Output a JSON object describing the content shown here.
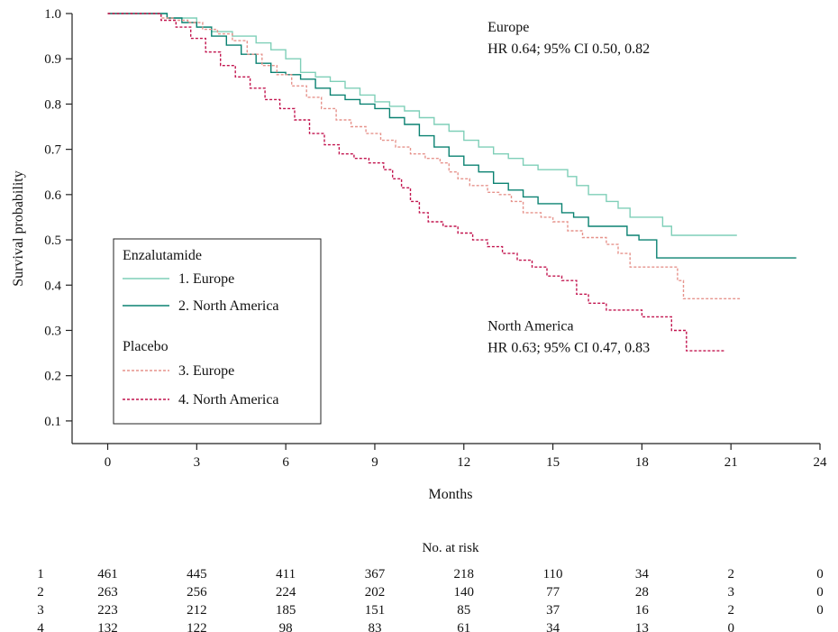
{
  "chart_data": {
    "type": "line",
    "style": "kaplan-meier-step",
    "xlabel": "Months",
    "ylabel": "Survival probability",
    "xlim": [
      -1.2,
      24
    ],
    "ylim": [
      0.05,
      1.0
    ],
    "x_ticks": [
      0,
      3,
      6,
      9,
      12,
      15,
      18,
      21,
      24
    ],
    "y_ticks": [
      0.1,
      0.2,
      0.3,
      0.4,
      0.5,
      0.6,
      0.7,
      0.8,
      0.9,
      1.0
    ],
    "y_tick_labels": [
      "0.1",
      "0.2",
      "0.3",
      "0.4",
      "0.5",
      "0.6",
      "0.7",
      "0.8",
      "0.9",
      "1.0"
    ],
    "grid": false,
    "legend": {
      "position": "left-middle",
      "groups": [
        {
          "title": "Enzalutamide",
          "entries": [
            {
              "label": "1. Europe",
              "series": 0
            },
            {
              "label": "2. North America",
              "series": 1
            }
          ]
        },
        {
          "title": "Placebo",
          "entries": [
            {
              "label": "3. Europe",
              "series": 2
            },
            {
              "label": "4. North America",
              "series": 3
            }
          ]
        }
      ]
    },
    "annotations": [
      {
        "lines": [
          "Europe",
          "HR 0.64; 95% CI 0.50, 0.82"
        ],
        "x": 12.8,
        "y": 0.96
      },
      {
        "lines": [
          "North America",
          "HR 0.63; 95% CI 0.47, 0.83"
        ],
        "x": 12.8,
        "y": 0.3
      }
    ],
    "series": [
      {
        "name": "1. Europe",
        "color": "#7fcfb8",
        "dash": "solid",
        "points": [
          [
            0,
            1.0
          ],
          [
            1.8,
            1.0
          ],
          [
            2.0,
            0.99
          ],
          [
            3.0,
            0.97
          ],
          [
            3.5,
            0.96
          ],
          [
            4.2,
            0.95
          ],
          [
            5.0,
            0.935
          ],
          [
            5.5,
            0.92
          ],
          [
            6.0,
            0.9
          ],
          [
            6.5,
            0.87
          ],
          [
            7.0,
            0.86
          ],
          [
            7.5,
            0.85
          ],
          [
            8.0,
            0.835
          ],
          [
            8.5,
            0.82
          ],
          [
            9.0,
            0.805
          ],
          [
            9.5,
            0.795
          ],
          [
            10.0,
            0.785
          ],
          [
            10.5,
            0.77
          ],
          [
            11.0,
            0.755
          ],
          [
            11.5,
            0.74
          ],
          [
            12.0,
            0.72
          ],
          [
            12.5,
            0.705
          ],
          [
            13.0,
            0.69
          ],
          [
            13.5,
            0.68
          ],
          [
            14.0,
            0.665
          ],
          [
            14.5,
            0.655
          ],
          [
            15.2,
            0.655
          ],
          [
            15.5,
            0.64
          ],
          [
            15.8,
            0.62
          ],
          [
            16.2,
            0.6
          ],
          [
            16.8,
            0.585
          ],
          [
            17.2,
            0.57
          ],
          [
            17.6,
            0.55
          ],
          [
            18.4,
            0.55
          ],
          [
            18.7,
            0.53
          ],
          [
            19.0,
            0.51
          ],
          [
            21.2,
            0.51
          ]
        ]
      },
      {
        "name": "2. North America",
        "color": "#0b8272",
        "dash": "solid",
        "points": [
          [
            0,
            1.0
          ],
          [
            1.8,
            1.0
          ],
          [
            2.0,
            0.99
          ],
          [
            2.5,
            0.98
          ],
          [
            3.0,
            0.97
          ],
          [
            3.5,
            0.95
          ],
          [
            4.0,
            0.93
          ],
          [
            4.5,
            0.91
          ],
          [
            5.0,
            0.89
          ],
          [
            5.5,
            0.87
          ],
          [
            6.0,
            0.865
          ],
          [
            6.5,
            0.855
          ],
          [
            7.0,
            0.835
          ],
          [
            7.5,
            0.82
          ],
          [
            8.0,
            0.81
          ],
          [
            8.5,
            0.8
          ],
          [
            9.0,
            0.79
          ],
          [
            9.5,
            0.77
          ],
          [
            10.0,
            0.755
          ],
          [
            10.5,
            0.73
          ],
          [
            11.0,
            0.705
          ],
          [
            11.5,
            0.685
          ],
          [
            12.0,
            0.665
          ],
          [
            12.5,
            0.65
          ],
          [
            13.0,
            0.625
          ],
          [
            13.5,
            0.61
          ],
          [
            14.0,
            0.595
          ],
          [
            14.5,
            0.58
          ],
          [
            15.0,
            0.58
          ],
          [
            15.3,
            0.56
          ],
          [
            15.7,
            0.55
          ],
          [
            16.2,
            0.53
          ],
          [
            17.2,
            0.53
          ],
          [
            17.5,
            0.51
          ],
          [
            17.9,
            0.5
          ],
          [
            18.4,
            0.5
          ],
          [
            18.5,
            0.46
          ],
          [
            23.2,
            0.46
          ]
        ]
      },
      {
        "name": "3. Europe",
        "color": "#e6938c",
        "dash": "dashed",
        "points": [
          [
            0,
            1.0
          ],
          [
            1.5,
            1.0
          ],
          [
            1.8,
            0.99
          ],
          [
            2.2,
            0.985
          ],
          [
            2.7,
            0.98
          ],
          [
            3.2,
            0.965
          ],
          [
            3.7,
            0.955
          ],
          [
            4.2,
            0.94
          ],
          [
            4.7,
            0.91
          ],
          [
            5.2,
            0.885
          ],
          [
            5.7,
            0.865
          ],
          [
            6.2,
            0.84
          ],
          [
            6.7,
            0.815
          ],
          [
            7.2,
            0.79
          ],
          [
            7.7,
            0.765
          ],
          [
            8.2,
            0.75
          ],
          [
            8.7,
            0.735
          ],
          [
            9.2,
            0.72
          ],
          [
            9.7,
            0.705
          ],
          [
            10.2,
            0.69
          ],
          [
            10.7,
            0.68
          ],
          [
            11.2,
            0.67
          ],
          [
            11.5,
            0.65
          ],
          [
            11.8,
            0.635
          ],
          [
            12.2,
            0.62
          ],
          [
            12.8,
            0.605
          ],
          [
            13.2,
            0.6
          ],
          [
            13.6,
            0.585
          ],
          [
            14.0,
            0.56
          ],
          [
            14.6,
            0.55
          ],
          [
            15.0,
            0.54
          ],
          [
            15.5,
            0.52
          ],
          [
            16.0,
            0.505
          ],
          [
            16.5,
            0.505
          ],
          [
            16.8,
            0.49
          ],
          [
            17.2,
            0.47
          ],
          [
            17.6,
            0.44
          ],
          [
            18.5,
            0.44
          ],
          [
            19.2,
            0.41
          ],
          [
            19.4,
            0.37
          ],
          [
            21.3,
            0.37
          ]
        ]
      },
      {
        "name": "4. North America",
        "color": "#c2154f",
        "dash": "dashed",
        "points": [
          [
            0,
            1.0
          ],
          [
            1.5,
            1.0
          ],
          [
            1.8,
            0.985
          ],
          [
            2.3,
            0.97
          ],
          [
            2.8,
            0.945
          ],
          [
            3.3,
            0.915
          ],
          [
            3.8,
            0.885
          ],
          [
            4.3,
            0.86
          ],
          [
            4.8,
            0.835
          ],
          [
            5.3,
            0.81
          ],
          [
            5.8,
            0.79
          ],
          [
            6.3,
            0.765
          ],
          [
            6.8,
            0.735
          ],
          [
            7.3,
            0.71
          ],
          [
            7.8,
            0.69
          ],
          [
            8.3,
            0.68
          ],
          [
            8.8,
            0.67
          ],
          [
            9.3,
            0.655
          ],
          [
            9.6,
            0.635
          ],
          [
            9.9,
            0.615
          ],
          [
            10.2,
            0.585
          ],
          [
            10.5,
            0.56
          ],
          [
            10.8,
            0.54
          ],
          [
            11.3,
            0.53
          ],
          [
            11.8,
            0.515
          ],
          [
            12.3,
            0.5
          ],
          [
            12.8,
            0.485
          ],
          [
            13.3,
            0.47
          ],
          [
            13.8,
            0.455
          ],
          [
            14.3,
            0.44
          ],
          [
            14.8,
            0.42
          ],
          [
            15.3,
            0.41
          ],
          [
            15.8,
            0.38
          ],
          [
            16.2,
            0.36
          ],
          [
            16.8,
            0.345
          ],
          [
            17.4,
            0.345
          ],
          [
            18.0,
            0.33
          ],
          [
            18.7,
            0.33
          ],
          [
            19.0,
            0.3
          ],
          [
            19.3,
            0.3
          ],
          [
            19.5,
            0.255
          ],
          [
            20.8,
            0.255
          ]
        ]
      }
    ],
    "risk_table": {
      "title": "No. at risk",
      "times": [
        0,
        3,
        6,
        9,
        12,
        15,
        18,
        21,
        24
      ],
      "rows": [
        {
          "label": "1",
          "values": [
            "461",
            "445",
            "411",
            "367",
            "218",
            "110",
            "34",
            "2",
            "0"
          ]
        },
        {
          "label": "2",
          "values": [
            "263",
            "256",
            "224",
            "202",
            "140",
            "77",
            "28",
            "3",
            "0"
          ]
        },
        {
          "label": "3",
          "values": [
            "223",
            "212",
            "185",
            "151",
            "85",
            "37",
            "16",
            "2",
            "0"
          ]
        },
        {
          "label": "4",
          "values": [
            "132",
            "122",
            "98",
            "83",
            "61",
            "34",
            "13",
            "0",
            ""
          ]
        }
      ]
    }
  }
}
